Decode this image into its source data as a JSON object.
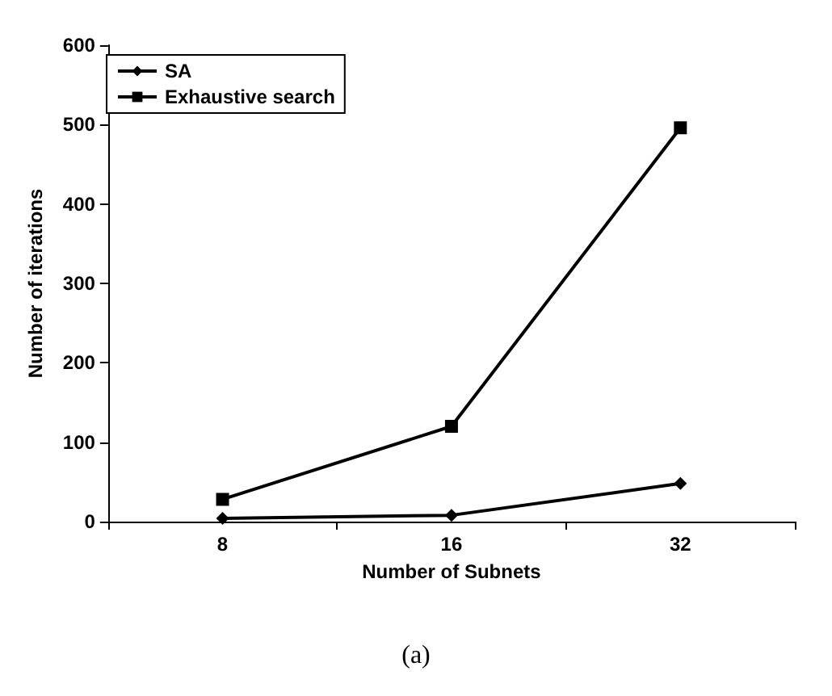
{
  "chart_data": {
    "type": "line",
    "xlabel": "Number of Subnets",
    "ylabel": "Number of iterations",
    "categories": [
      "8",
      "16",
      "32"
    ],
    "series": [
      {
        "name": "SA",
        "color": "#000000",
        "marker": "diamond",
        "values": [
          4,
          8,
          48
        ]
      },
      {
        "name": "Exhaustive search",
        "color": "#000000",
        "marker": "square",
        "values": [
          28,
          120,
          496
        ]
      }
    ],
    "ylim": [
      0,
      600
    ],
    "yticks": [
      0,
      100,
      200,
      300,
      400,
      500,
      600
    ],
    "grid": false,
    "legend": "top left",
    "line_style": "solid",
    "annotations": [
      "(a)"
    ]
  }
}
